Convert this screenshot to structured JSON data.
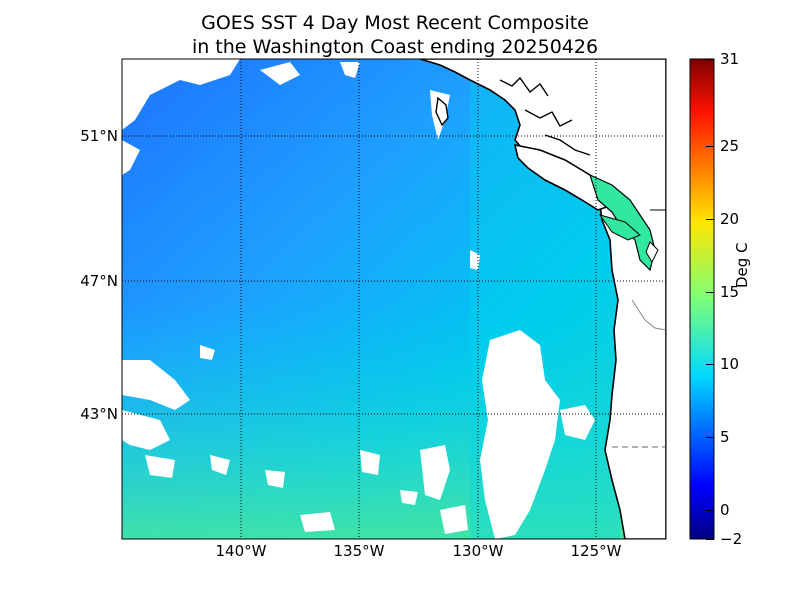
{
  "title": {
    "line1": "GOES SST 4 Day Most Recent Composite",
    "line2": "in the Washington Coast ending 20250426"
  },
  "axes": {
    "lat_labels": [
      "51°N",
      "47°N",
      "43°N"
    ],
    "lon_labels": [
      "140°W",
      "135°W",
      "130°W",
      "125°W"
    ]
  },
  "colorbar": {
    "label": "Deg C",
    "ticks": [
      "31",
      "25",
      "20",
      "15",
      "10",
      "5",
      "0",
      "−2"
    ],
    "min": -2,
    "max": 31,
    "colormap": "jet"
  },
  "colors": {
    "land": "#ffffff",
    "coastline": "#000000",
    "offshore_sst": "#1e90ff",
    "nearshore_sst": "#00d2e6",
    "southern_sst": "#3cdcb4"
  }
}
